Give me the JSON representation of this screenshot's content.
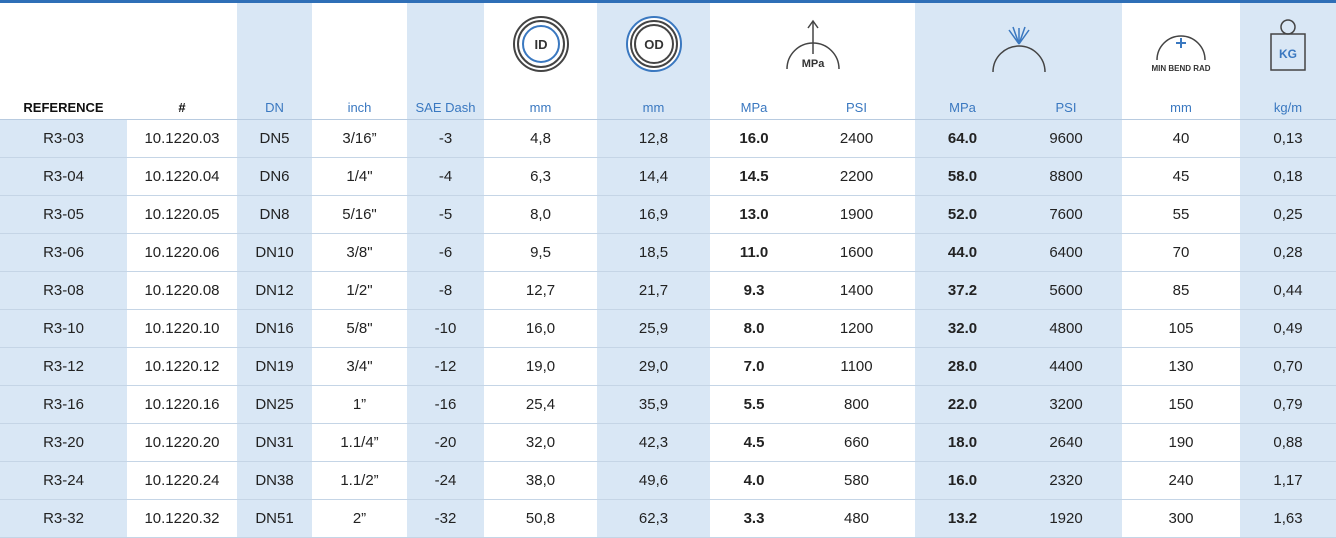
{
  "header": {
    "icons": {
      "id": "ID",
      "od": "OD",
      "pressure": "MPa",
      "bend": "MIN BEND RAD",
      "weight": "KG"
    },
    "columns": [
      "REFERENCE",
      "#",
      "DN",
      "inch",
      "SAE Dash",
      "mm",
      "mm",
      "MPa",
      "PSI",
      "MPa",
      "PSI",
      "mm",
      "kg/m"
    ]
  },
  "table": {
    "rows": [
      [
        "R3-03",
        "10.1220.03",
        "DN5",
        "3/16”",
        "-3",
        "4,8",
        "12,8",
        "16.0",
        "2400",
        "64.0",
        "9600",
        "40",
        "0,13"
      ],
      [
        "R3-04",
        "10.1220.04",
        "DN6",
        "1/4\"",
        "-4",
        "6,3",
        "14,4",
        "14.5",
        "2200",
        "58.0",
        "8800",
        "45",
        "0,18"
      ],
      [
        "R3-05",
        "10.1220.05",
        "DN8",
        "5/16\"",
        "-5",
        "8,0",
        "16,9",
        "13.0",
        "1900",
        "52.0",
        "7600",
        "55",
        "0,25"
      ],
      [
        "R3-06",
        "10.1220.06",
        "DN10",
        "3/8\"",
        "-6",
        "9,5",
        "18,5",
        "11.0",
        "1600",
        "44.0",
        "6400",
        "70",
        "0,28"
      ],
      [
        "R3-08",
        "10.1220.08",
        "DN12",
        "1/2\"",
        "-8",
        "12,7",
        "21,7",
        "9.3",
        "1400",
        "37.2",
        "5600",
        "85",
        "0,44"
      ],
      [
        "R3-10",
        "10.1220.10",
        "DN16",
        "5/8\"",
        "-10",
        "16,0",
        "25,9",
        "8.0",
        "1200",
        "32.0",
        "4800",
        "105",
        "0,49"
      ],
      [
        "R3-12",
        "10.1220.12",
        "DN19",
        "3/4\"",
        "-12",
        "19,0",
        "29,0",
        "7.0",
        "1100",
        "28.0",
        "4400",
        "130",
        "0,70"
      ],
      [
        "R3-16",
        "10.1220.16",
        "DN25",
        "1”",
        "-16",
        "25,4",
        "35,9",
        "5.5",
        "800",
        "22.0",
        "3200",
        "150",
        "0,79"
      ],
      [
        "R3-20",
        "10.1220.20",
        "DN31",
        "1.1/4”",
        "-20",
        "32,0",
        "42,3",
        "4.5",
        "660",
        "18.0",
        "2640",
        "190",
        "0,88"
      ],
      [
        "R3-24",
        "10.1220.24",
        "DN38",
        "1.1/2”",
        "-24",
        "38,0",
        "49,6",
        "4.0",
        "580",
        "16.0",
        "2320",
        "240",
        "1,17"
      ],
      [
        "R3-32",
        "10.1220.32",
        "DN51",
        "2”",
        "-32",
        "50,8",
        "62,3",
        "3.3",
        "480",
        "13.2",
        "1920",
        "300",
        "1,63"
      ]
    ]
  }
}
